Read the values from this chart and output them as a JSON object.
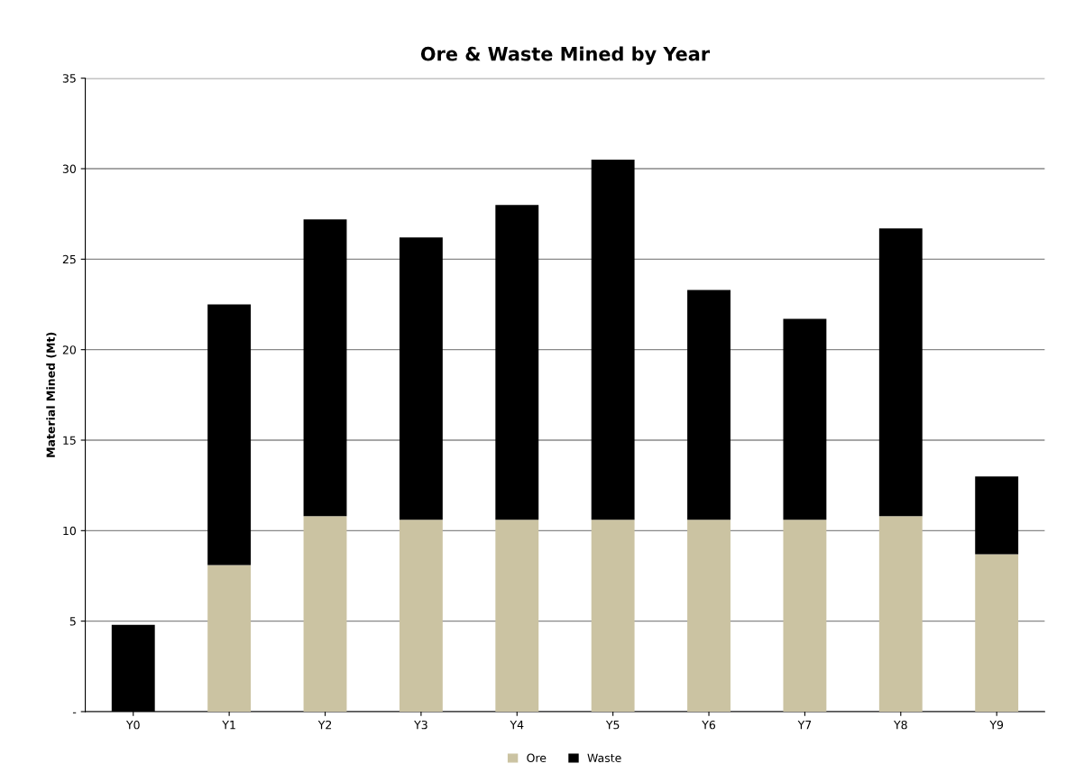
{
  "chart_data": {
    "type": "bar",
    "title": "Ore & Waste Mined by Year",
    "ylabel": "Material Mined (Mt)",
    "categories": [
      "Y0",
      "Y1",
      "Y2",
      "Y3",
      "Y4",
      "Y5",
      "Y6",
      "Y7",
      "Y8",
      "Y9"
    ],
    "series": [
      {
        "name": "Ore",
        "color": "#cbc3a2",
        "values": [
          0,
          8.1,
          10.8,
          10.6,
          10.6,
          10.6,
          10.6,
          10.6,
          10.8,
          8.7
        ]
      },
      {
        "name": "Waste",
        "color": "#000000",
        "values": [
          4.8,
          14.4,
          16.4,
          15.6,
          17.4,
          19.9,
          12.7,
          11.1,
          15.9,
          4.3
        ]
      }
    ],
    "stacked": true,
    "ylim": [
      0,
      35
    ],
    "yticks": [
      {
        "value": 0,
        "label": "-"
      },
      5,
      10,
      15,
      20,
      25,
      30,
      35
    ],
    "grid": "y",
    "legend": "bottom"
  }
}
